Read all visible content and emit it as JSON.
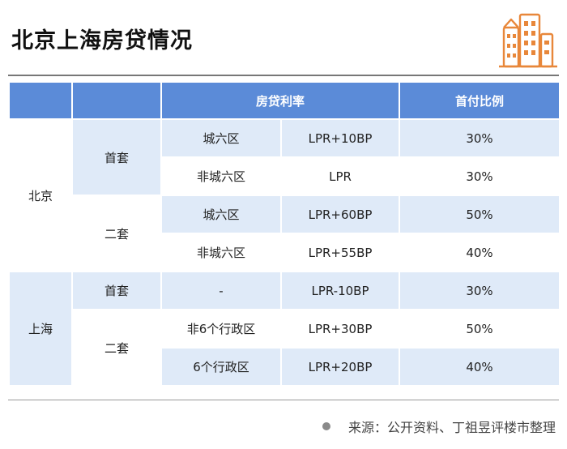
{
  "title": "北京上海房贷情况",
  "logo_icon": "city-buildings-icon",
  "header": {
    "col1": "",
    "col2": "",
    "rate": "房贷利率",
    "down_payment": "首付比例"
  },
  "table": {
    "beijing": {
      "city": "北京",
      "first_home": {
        "label": "首套",
        "rows": [
          {
            "area": "城六区",
            "rate": "LPR+10BP",
            "down": "30%"
          },
          {
            "area": "非城六区",
            "rate": "LPR",
            "down": "30%"
          }
        ]
      },
      "second_home": {
        "label": "二套",
        "rows": [
          {
            "area": "城六区",
            "rate": "LPR+60BP",
            "down": "50%"
          },
          {
            "area": "非城六区",
            "rate": "LPR+55BP",
            "down": "40%"
          }
        ]
      }
    },
    "shanghai": {
      "city": "上海",
      "first_home": {
        "label": "首套",
        "rows": [
          {
            "area": "-",
            "rate": "LPR-10BP",
            "down": "30%"
          }
        ]
      },
      "second_home": {
        "label": "二套",
        "rows": [
          {
            "area": "非6个行政区",
            "rate": "LPR+30BP",
            "down": "50%"
          },
          {
            "area": "6个行政区",
            "rate": "LPR+20BP",
            "down": "40%"
          }
        ]
      }
    }
  },
  "source": "来源：公开资料、丁祖昱评楼市整理",
  "colors": {
    "header": "#5b8bd8",
    "city_band": "#dfeaf8",
    "zebra": "#eef4fc",
    "logo": "#e8873a"
  }
}
